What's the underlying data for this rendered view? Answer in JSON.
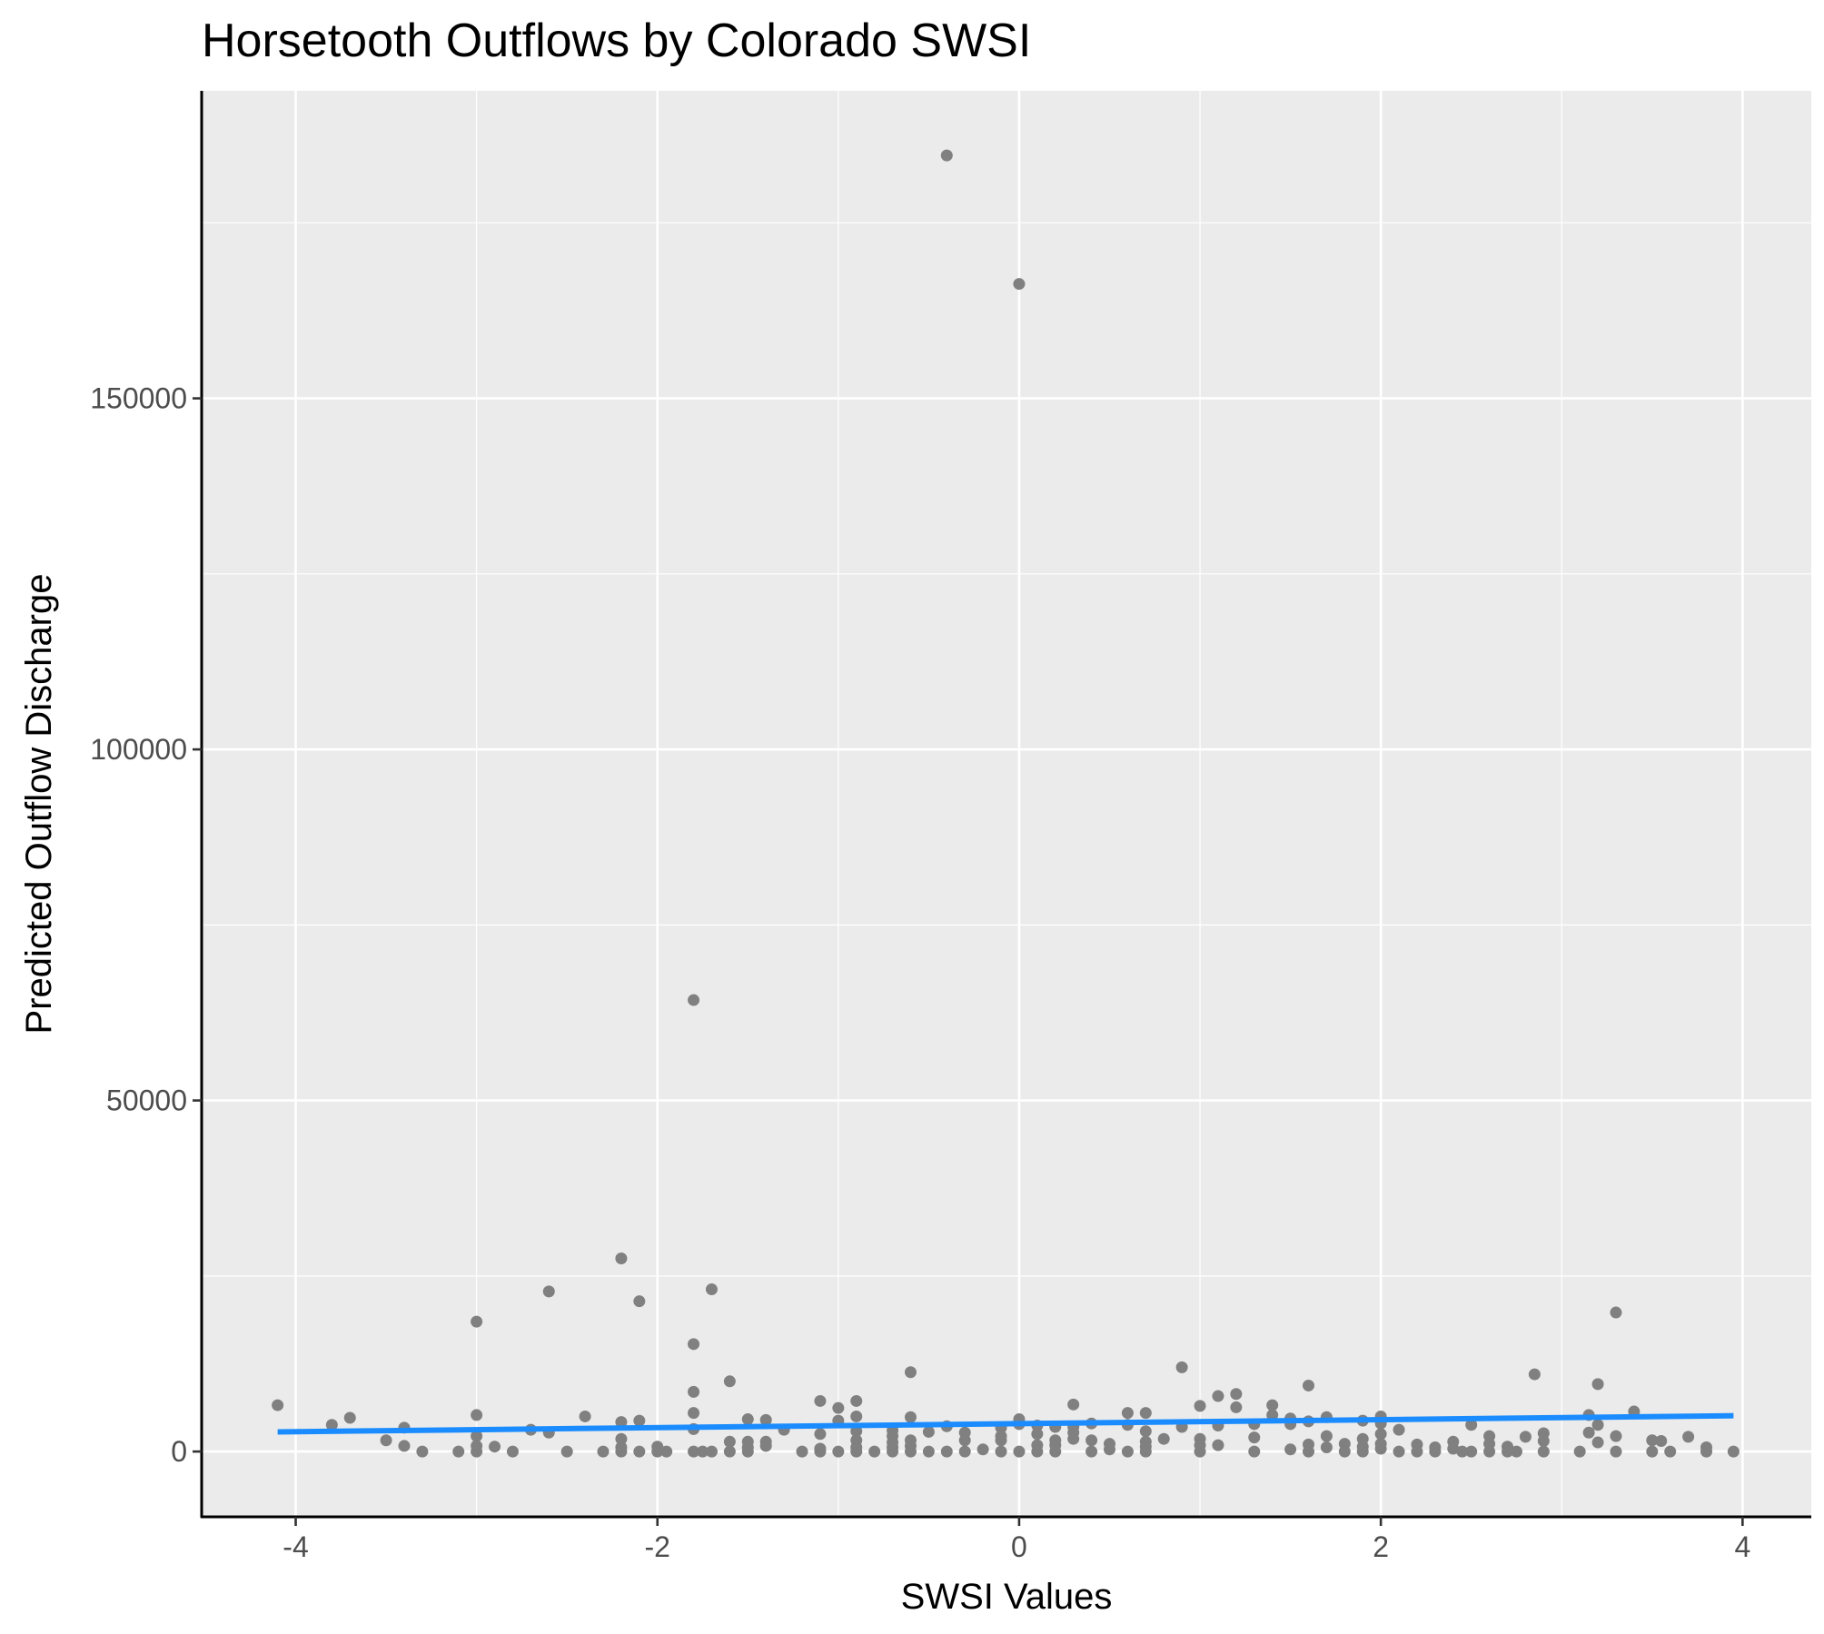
{
  "chart_data": {
    "type": "scatter",
    "title": "Horsetooth Outflows by Colorado SWSI",
    "xlabel": "SWSI Values",
    "ylabel": "Predicted Outflow Discharge",
    "xlim": [
      -4.52,
      4.38
    ],
    "ylim": [
      -9300,
      193800
    ],
    "x_ticks": [
      -4,
      -2,
      0,
      2,
      4
    ],
    "x_tick_labels": [
      "-4",
      "-2",
      "0",
      "2",
      "4"
    ],
    "y_ticks": [
      0,
      50000,
      100000,
      150000
    ],
    "y_tick_labels": [
      "0",
      "50000",
      "100000",
      "150000"
    ],
    "grid": true,
    "legend": "none",
    "colors": {
      "panel_background": "#ebebeb",
      "grid_line": "#ffffff",
      "point": "#808080",
      "trend_line": "#1a8cff"
    },
    "trend_line": {
      "type": "linear fit",
      "x": [
        -4.1,
        3.95
      ],
      "y": [
        2800,
        5100
      ]
    },
    "points": [
      [
        -4.1,
        6600
      ],
      [
        -3.8,
        3800
      ],
      [
        -3.7,
        4800
      ],
      [
        -3.5,
        1600
      ],
      [
        -3.4,
        3400
      ],
      [
        -3.4,
        800
      ],
      [
        -3.3,
        0
      ],
      [
        -3.1,
        0
      ],
      [
        -3.0,
        18500
      ],
      [
        -3.0,
        5200
      ],
      [
        -3.0,
        2200
      ],
      [
        -3.0,
        800
      ],
      [
        -3.0,
        0
      ],
      [
        -2.9,
        700
      ],
      [
        -2.8,
        0
      ],
      [
        -2.7,
        3100
      ],
      [
        -2.6,
        22800
      ],
      [
        -2.6,
        2700
      ],
      [
        -2.5,
        0
      ],
      [
        -2.4,
        5000
      ],
      [
        -2.3,
        0
      ],
      [
        -2.2,
        27500
      ],
      [
        -2.2,
        4200
      ],
      [
        -2.2,
        1800
      ],
      [
        -2.2,
        600
      ],
      [
        -2.2,
        0
      ],
      [
        -2.1,
        21400
      ],
      [
        -2.1,
        4400
      ],
      [
        -2.1,
        0
      ],
      [
        -2.0,
        700
      ],
      [
        -2.0,
        0
      ],
      [
        -1.95,
        0
      ],
      [
        -1.8,
        64300
      ],
      [
        -1.8,
        15300
      ],
      [
        -1.8,
        8500
      ],
      [
        -1.8,
        5500
      ],
      [
        -1.8,
        3200
      ],
      [
        -1.8,
        0
      ],
      [
        -1.75,
        0
      ],
      [
        -1.7,
        23100
      ],
      [
        -1.7,
        0
      ],
      [
        -1.6,
        10000
      ],
      [
        -1.6,
        1400
      ],
      [
        -1.6,
        0
      ],
      [
        -1.5,
        4600
      ],
      [
        -1.5,
        1400
      ],
      [
        -1.5,
        600
      ],
      [
        -1.5,
        0
      ],
      [
        -1.4,
        4500
      ],
      [
        -1.4,
        1400
      ],
      [
        -1.4,
        800
      ],
      [
        -1.3,
        3100
      ],
      [
        -1.2,
        0
      ],
      [
        -1.1,
        7200
      ],
      [
        -1.1,
        2500
      ],
      [
        -1.1,
        400
      ],
      [
        -1.1,
        0
      ],
      [
        -1.0,
        6200
      ],
      [
        -1.0,
        4400
      ],
      [
        -1.0,
        0
      ],
      [
        -0.9,
        7200
      ],
      [
        -0.9,
        5000
      ],
      [
        -0.9,
        2900
      ],
      [
        -0.9,
        1600
      ],
      [
        -0.9,
        600
      ],
      [
        -0.9,
        0
      ],
      [
        -0.8,
        0
      ],
      [
        -0.7,
        3000
      ],
      [
        -0.7,
        2200
      ],
      [
        -0.7,
        1300
      ],
      [
        -0.7,
        600
      ],
      [
        -0.7,
        0
      ],
      [
        -0.6,
        11300
      ],
      [
        -0.6,
        4900
      ],
      [
        -0.6,
        1600
      ],
      [
        -0.6,
        800
      ],
      [
        -0.6,
        0
      ],
      [
        -0.5,
        2800
      ],
      [
        -0.5,
        0
      ],
      [
        -0.4,
        184600
      ],
      [
        -0.4,
        3600
      ],
      [
        -0.4,
        0
      ],
      [
        -0.3,
        2700
      ],
      [
        -0.3,
        1600
      ],
      [
        -0.3,
        0
      ],
      [
        -0.2,
        300
      ],
      [
        -0.1,
        3400
      ],
      [
        -0.1,
        2200
      ],
      [
        -0.1,
        1600
      ],
      [
        -0.1,
        0
      ],
      [
        0.0,
        166300
      ],
      [
        0.0,
        4600
      ],
      [
        0.0,
        3900
      ],
      [
        0.0,
        0
      ],
      [
        0.1,
        3700
      ],
      [
        0.1,
        2500
      ],
      [
        0.1,
        900
      ],
      [
        0.1,
        0
      ],
      [
        0.2,
        3500
      ],
      [
        0.2,
        1600
      ],
      [
        0.2,
        900
      ],
      [
        0.2,
        0
      ],
      [
        0.3,
        6700
      ],
      [
        0.3,
        3500
      ],
      [
        0.3,
        2700
      ],
      [
        0.3,
        1800
      ],
      [
        0.4,
        4000
      ],
      [
        0.4,
        1600
      ],
      [
        0.4,
        0
      ],
      [
        0.5,
        1100
      ],
      [
        0.5,
        300
      ],
      [
        0.6,
        5500
      ],
      [
        0.6,
        3800
      ],
      [
        0.6,
        0
      ],
      [
        0.7,
        5500
      ],
      [
        0.7,
        2900
      ],
      [
        0.7,
        1400
      ],
      [
        0.7,
        700
      ],
      [
        0.7,
        0
      ],
      [
        0.8,
        1800
      ],
      [
        0.9,
        12000
      ],
      [
        0.9,
        3500
      ],
      [
        1.0,
        6500
      ],
      [
        1.0,
        1800
      ],
      [
        1.0,
        900
      ],
      [
        1.0,
        0
      ],
      [
        1.1,
        7900
      ],
      [
        1.1,
        3700
      ],
      [
        1.1,
        900
      ],
      [
        1.2,
        8200
      ],
      [
        1.2,
        6300
      ],
      [
        1.3,
        3900
      ],
      [
        1.3,
        2000
      ],
      [
        1.3,
        0
      ],
      [
        1.4,
        6600
      ],
      [
        1.4,
        5200
      ],
      [
        1.5,
        4700
      ],
      [
        1.5,
        3900
      ],
      [
        1.5,
        300
      ],
      [
        1.6,
        9400
      ],
      [
        1.6,
        4300
      ],
      [
        1.6,
        1000
      ],
      [
        1.6,
        0
      ],
      [
        1.7,
        4900
      ],
      [
        1.7,
        2200
      ],
      [
        1.7,
        600
      ],
      [
        1.8,
        1100
      ],
      [
        1.8,
        0
      ],
      [
        1.9,
        4400
      ],
      [
        1.9,
        1800
      ],
      [
        1.9,
        700
      ],
      [
        1.9,
        0
      ],
      [
        2.0,
        5000
      ],
      [
        2.0,
        4000
      ],
      [
        2.0,
        2500
      ],
      [
        2.0,
        1100
      ],
      [
        2.0,
        400
      ],
      [
        2.1,
        3100
      ],
      [
        2.1,
        0
      ],
      [
        2.2,
        1000
      ],
      [
        2.2,
        0
      ],
      [
        2.3,
        600
      ],
      [
        2.3,
        0
      ],
      [
        2.4,
        1400
      ],
      [
        2.4,
        400
      ],
      [
        2.45,
        0
      ],
      [
        2.5,
        3800
      ],
      [
        2.5,
        0
      ],
      [
        2.6,
        2200
      ],
      [
        2.6,
        1100
      ],
      [
        2.6,
        0
      ],
      [
        2.7,
        700
      ],
      [
        2.7,
        0
      ],
      [
        2.75,
        0
      ],
      [
        2.8,
        2100
      ],
      [
        2.85,
        11000
      ],
      [
        2.9,
        2600
      ],
      [
        2.9,
        1500
      ],
      [
        2.9,
        0
      ],
      [
        3.1,
        0
      ],
      [
        3.15,
        5200
      ],
      [
        3.15,
        2700
      ],
      [
        3.2,
        9600
      ],
      [
        3.2,
        3800
      ],
      [
        3.2,
        1300
      ],
      [
        3.3,
        19800
      ],
      [
        3.3,
        2200
      ],
      [
        3.3,
        0
      ],
      [
        3.4,
        5700
      ],
      [
        3.5,
        1600
      ],
      [
        3.5,
        0
      ],
      [
        3.55,
        1500
      ],
      [
        3.6,
        0
      ],
      [
        3.7,
        2100
      ],
      [
        3.8,
        600
      ],
      [
        3.8,
        0
      ],
      [
        3.95,
        0
      ]
    ]
  }
}
